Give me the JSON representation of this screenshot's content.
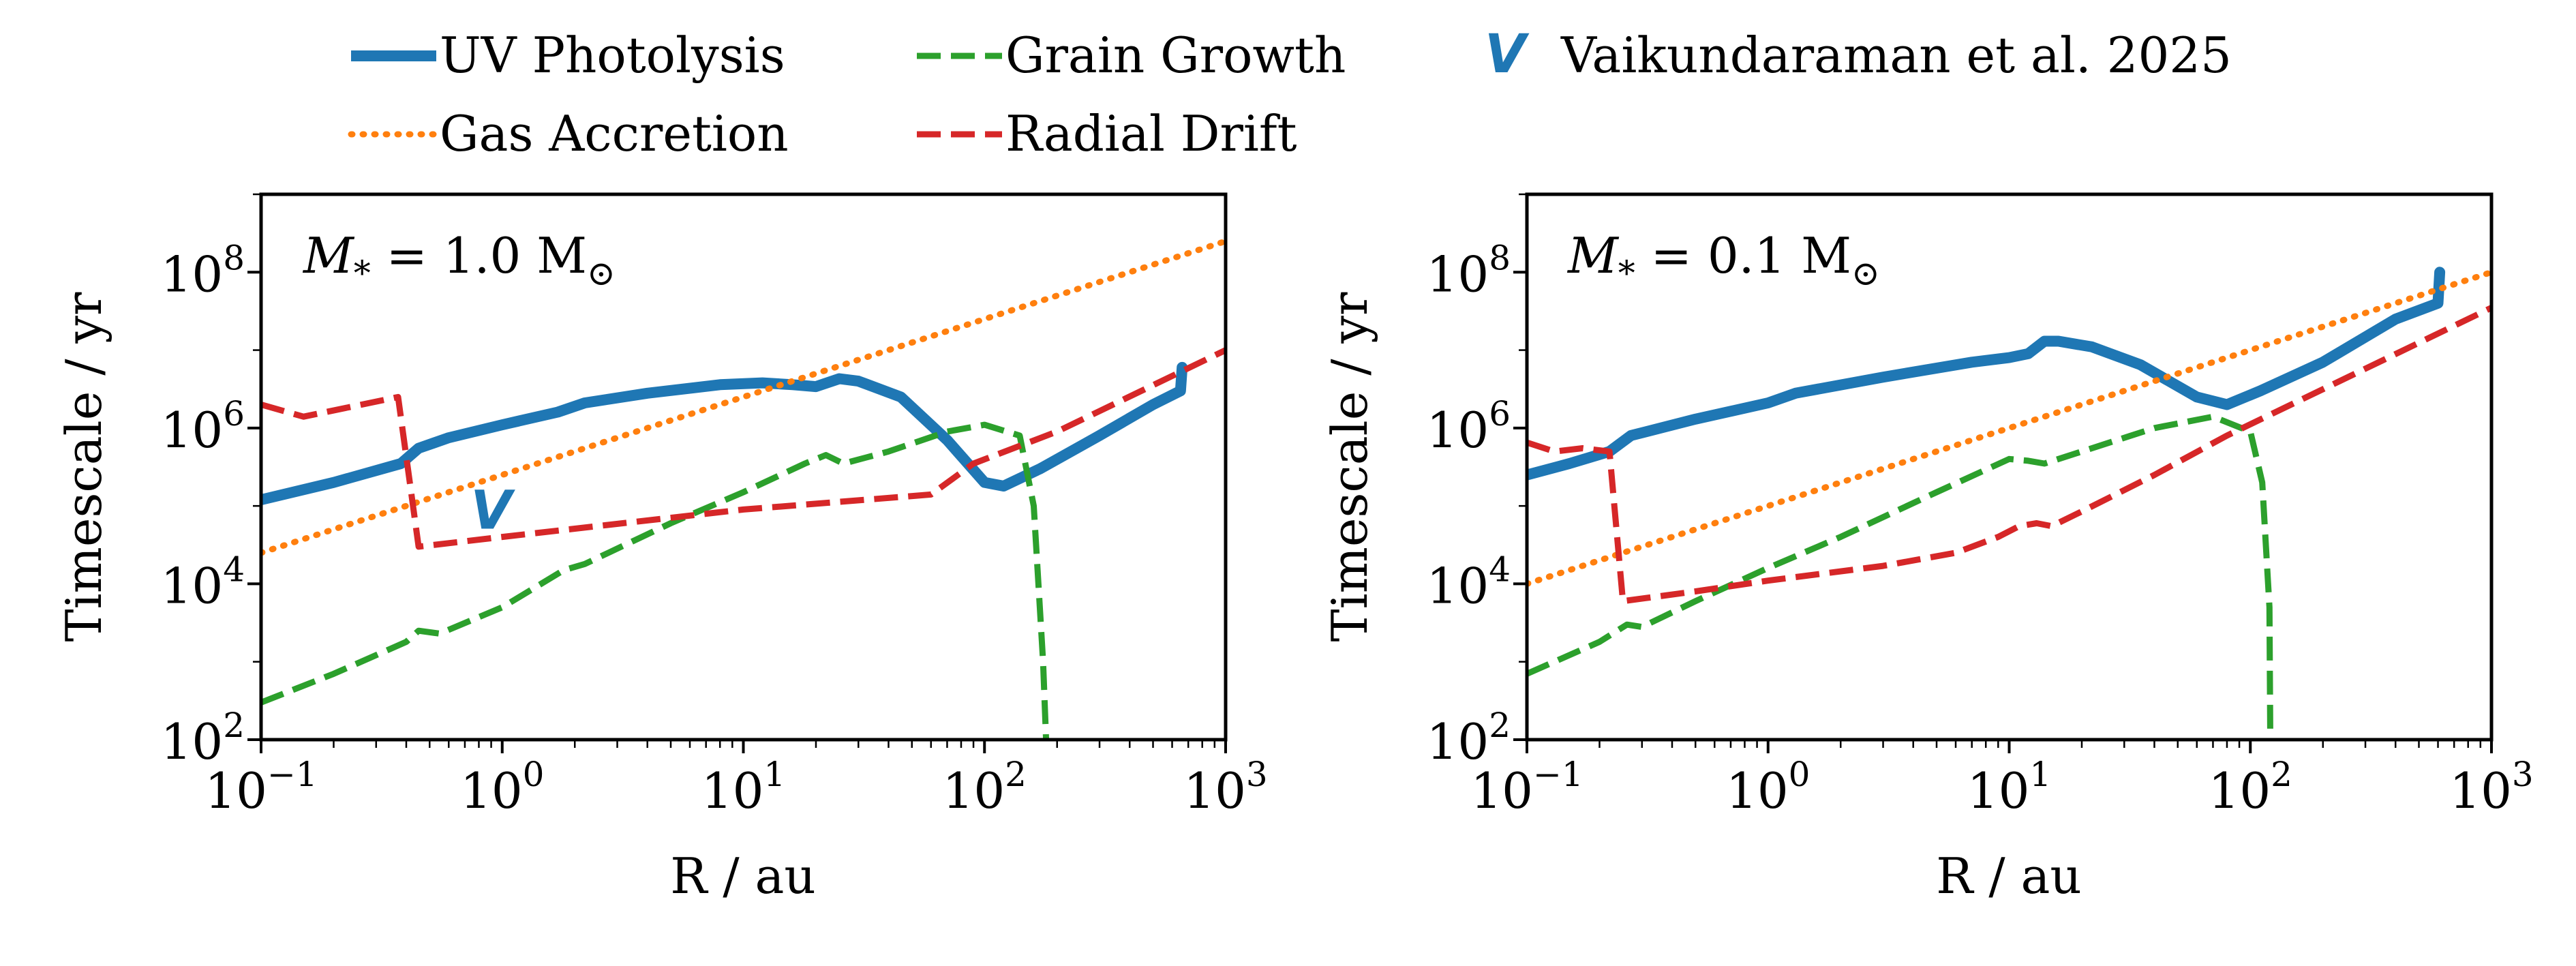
{
  "legend": {
    "uv": "UV Photolysis",
    "gas": "Gas Accretion",
    "grain": "Grain Growth",
    "drift": "Radial Drift",
    "marker_symbol": "V",
    "marker_label": "Vaikundaraman et al. 2025"
  },
  "colors": {
    "uv": "#1f77b4",
    "gas": "#ff7f0e",
    "grain": "#2ca02c",
    "drift": "#d62728"
  },
  "chart_data": [
    {
      "type": "line",
      "title": "M* = 1.0 M⊙",
      "title_main": "M",
      "title_sub": "*",
      "title_rest": " = 1.0 M",
      "title_sym": "⊙",
      "xlabel": "R / au",
      "ylabel": "Timescale / yr",
      "xscale": "log",
      "yscale": "log",
      "xlim": [
        0.1,
        1000
      ],
      "ylim": [
        100,
        1000000000
      ],
      "xtick_values": [
        0.1,
        1,
        10,
        100,
        1000
      ],
      "xtick_labels": [
        [
          "10",
          "−1"
        ],
        [
          "10",
          "0"
        ],
        [
          "10",
          "1"
        ],
        [
          "10",
          "2"
        ],
        [
          "10",
          "3"
        ]
      ],
      "ytick_values": [
        100,
        10000,
        1000000,
        100000000
      ],
      "ytick_labels": [
        [
          "10",
          "2"
        ],
        [
          "10",
          "4"
        ],
        [
          "10",
          "6"
        ],
        [
          "10",
          "8"
        ]
      ],
      "series": [
        {
          "name": "UV Photolysis",
          "key": "uv",
          "style": "solid",
          "x": [
            0.1,
            0.2,
            0.38,
            0.45,
            0.6,
            1.0,
            1.7,
            2.2,
            4,
            8,
            12,
            16,
            20,
            25,
            30,
            45,
            70,
            100,
            120,
            170,
            300,
            500,
            650,
            660
          ],
          "y": [
            120000,
            200000,
            350000,
            550000,
            750000,
            1100000,
            1600000,
            2100000,
            2800000,
            3600000,
            3800000,
            3600000,
            3400000,
            4300000,
            4000000,
            2500000,
            700000,
            200000,
            180000,
            300000,
            800000,
            2000000,
            3000000,
            6000000
          ]
        },
        {
          "name": "Gas Accretion",
          "key": "gas",
          "style": "dotted",
          "x": [
            0.1,
            1000
          ],
          "y": [
            25000,
            250000000
          ]
        },
        {
          "name": "Grain Growth",
          "key": "grain",
          "style": "dashed",
          "x": [
            0.1,
            0.2,
            0.4,
            0.45,
            0.55,
            1.0,
            1.8,
            2.2,
            5,
            10,
            18,
            22,
            26,
            40,
            70,
            100,
            140,
            160,
            175,
            180
          ],
          "y": [
            300,
            700,
            1800,
            2500,
            2300,
            5000,
            15000,
            18000,
            60000,
            150000,
            350000,
            450000,
            350000,
            500000,
            900000,
            1100000,
            800000,
            100000,
            1000,
            100
          ]
        },
        {
          "name": "Radial Drift",
          "key": "drift",
          "style": "dashed",
          "x": [
            0.1,
            0.15,
            0.37,
            0.45,
            1.0,
            10,
            60,
            90,
            200,
            1000
          ],
          "y": [
            2000000,
            1400000,
            2500000,
            30000,
            40000,
            90000,
            140000,
            350000,
            900000,
            10000000
          ]
        }
      ],
      "annotations": [
        {
          "text": "V",
          "x": 0.9,
          "y": 90000,
          "key": "uv"
        }
      ]
    },
    {
      "type": "line",
      "title": "M* = 0.1 M⊙",
      "title_main": "M",
      "title_sub": "*",
      "title_rest": " = 0.1 M",
      "title_sym": "⊙",
      "xlabel": "R / au",
      "ylabel": "Timescale / yr",
      "xscale": "log",
      "yscale": "log",
      "xlim": [
        0.1,
        1000
      ],
      "ylim": [
        100,
        1000000000
      ],
      "xtick_values": [
        0.1,
        1,
        10,
        100,
        1000
      ],
      "xtick_labels": [
        [
          "10",
          "−1"
        ],
        [
          "10",
          "0"
        ],
        [
          "10",
          "1"
        ],
        [
          "10",
          "2"
        ],
        [
          "10",
          "3"
        ]
      ],
      "ytick_values": [
        100,
        10000,
        1000000,
        100000000
      ],
      "ytick_labels": [
        [
          "10",
          "2"
        ],
        [
          "10",
          "4"
        ],
        [
          "10",
          "6"
        ],
        [
          "10",
          "8"
        ]
      ],
      "series": [
        {
          "name": "UV Photolysis",
          "key": "uv",
          "style": "solid",
          "x": [
            0.1,
            0.15,
            0.22,
            0.27,
            0.5,
            1.0,
            1.3,
            3,
            7,
            10,
            12,
            14,
            16,
            22,
            35,
            60,
            80,
            110,
            200,
            400,
            600,
            610
          ],
          "y": [
            250000,
            350000,
            500000,
            800000,
            1300000,
            2100000,
            2800000,
            4500000,
            7000000,
            8000000,
            9000000,
            13000000,
            13000000,
            11000000,
            6500000,
            2500000,
            2000000,
            3000000,
            7000000,
            25000000,
            40000000,
            100000000
          ]
        },
        {
          "name": "Gas Accretion",
          "key": "gas",
          "style": "dotted",
          "x": [
            0.1,
            1000
          ],
          "y": [
            10000,
            100000000
          ]
        },
        {
          "name": "Grain Growth",
          "key": "grain",
          "style": "dashed",
          "x": [
            0.1,
            0.2,
            0.26,
            0.3,
            0.5,
            1.0,
            2,
            5,
            10,
            12,
            14,
            20,
            40,
            70,
            100,
            112,
            120,
            121
          ],
          "y": [
            700,
            1800,
            3000,
            2800,
            6000,
            16000,
            40000,
            150000,
            400000,
            380000,
            350000,
            500000,
            1000000,
            1400000,
            900000,
            200000,
            5000,
            100
          ]
        },
        {
          "name": "Radial Drift",
          "key": "drift",
          "style": "dashed",
          "x": [
            0.1,
            0.13,
            0.17,
            0.22,
            0.25,
            0.5,
            1,
            3,
            6,
            9,
            11,
            13,
            15,
            20,
            40,
            80,
            1000
          ],
          "y": [
            650000,
            500000,
            550000,
            500000,
            6000,
            8000,
            11000,
            17000,
            25000,
            40000,
            55000,
            60000,
            55000,
            85000,
            250000,
            800000,
            35000000
          ]
        }
      ],
      "annotations": []
    }
  ]
}
